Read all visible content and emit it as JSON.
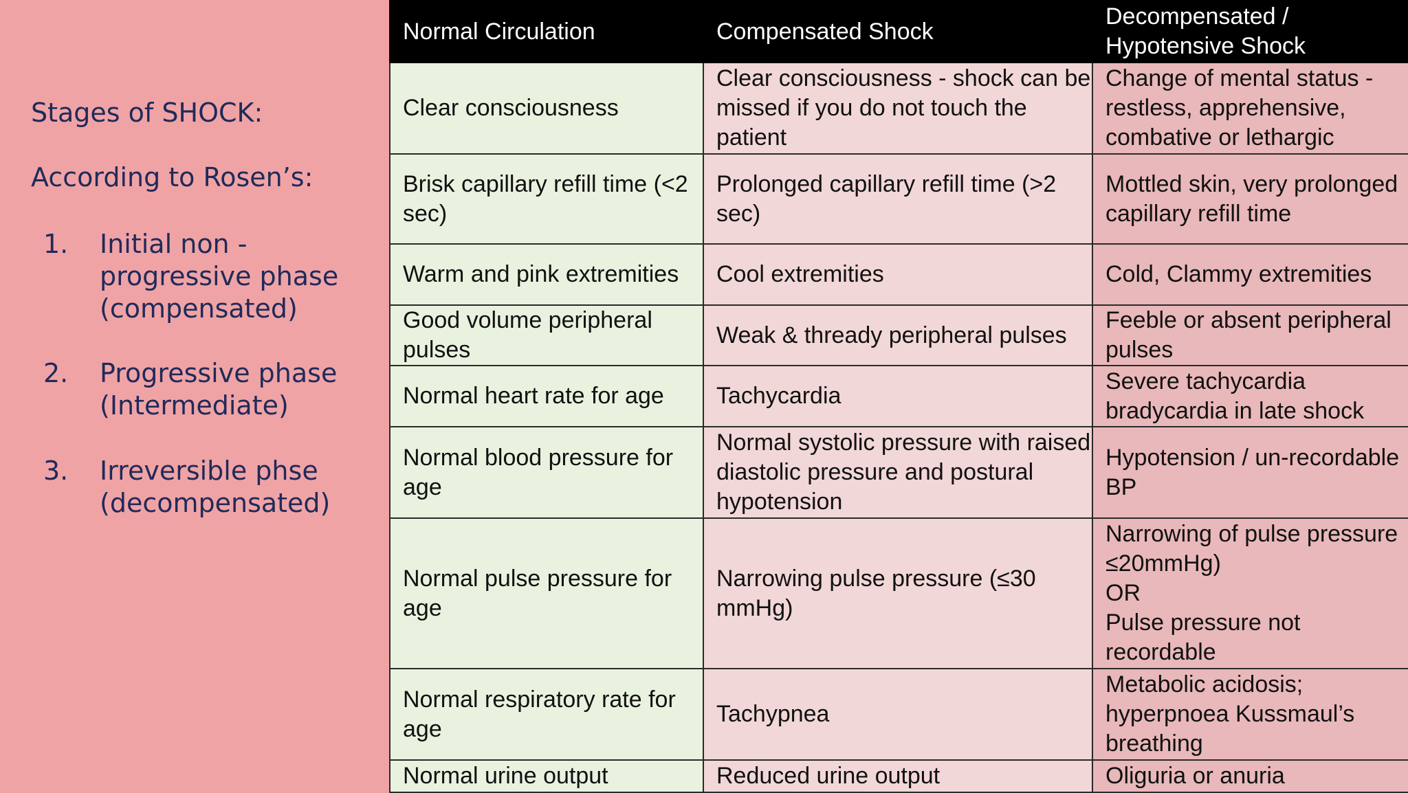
{
  "left_panel": {
    "title": "Stages of SHOCK:",
    "subtitle": "According to Rosen’s:",
    "stages": [
      {
        "number": "1.",
        "text": "Initial non - progressive phase (compensated)"
      },
      {
        "number": "2.",
        "text": "Progressive phase (Intermediate)"
      },
      {
        "number": "3.",
        "text": "Irreversible phse (decompensated)"
      }
    ]
  },
  "table": {
    "headers": [
      "Normal Circulation",
      "Compensated Shock",
      "Decompensated / Hypotensive Shock"
    ],
    "rows": [
      {
        "normal": "Clear consciousness",
        "compensated": "Clear consciousness - shock can be missed if you do not touch the patient",
        "decompensated": "Change of mental status - restless, apprehensive, combative or lethargic"
      },
      {
        "normal": "Brisk capillary refill time (<2 sec)",
        "compensated": "Prolonged capillary refill time (>2 sec)",
        "decompensated": "Mottled skin, very prolonged capillary refill time"
      },
      {
        "normal": "Warm and pink extremities",
        "compensated": "Cool extremities",
        "decompensated": "Cold, Clammy extremities"
      },
      {
        "normal": "Good volume peripheral pulses",
        "compensated": "Weak & thready peripheral pulses",
        "decompensated": "Feeble or absent peripheral pulses"
      },
      {
        "normal": "Normal heart rate for age",
        "compensated": "Tachycardia",
        "decompensated": "Severe  tachycardia bradycardia in late shock"
      },
      {
        "normal": "Normal blood pressure for age",
        "compensated": "Normal systolic pressure with raised diastolic pressure and postural hypotension",
        "decompensated": "Hypotension / un-recordable BP"
      },
      {
        "normal": "Normal pulse pressure for age",
        "compensated": "Narrowing pulse pressure (≤30 mmHg)",
        "decompensated_lines": [
          "Narrowing of pulse pressure ≤20mmHg)",
          "OR",
          "Pulse pressure not recordable"
        ]
      },
      {
        "normal": "Normal respiratory rate for age",
        "compensated": "Tachypnea",
        "decompensated": "Metabolic acidosis; hyperpnoea Kussmaul’s breathing"
      },
      {
        "normal": "Normal urine output",
        "compensated": "Reduced urine output",
        "decompensated": "Oliguria or anuria"
      }
    ]
  }
}
